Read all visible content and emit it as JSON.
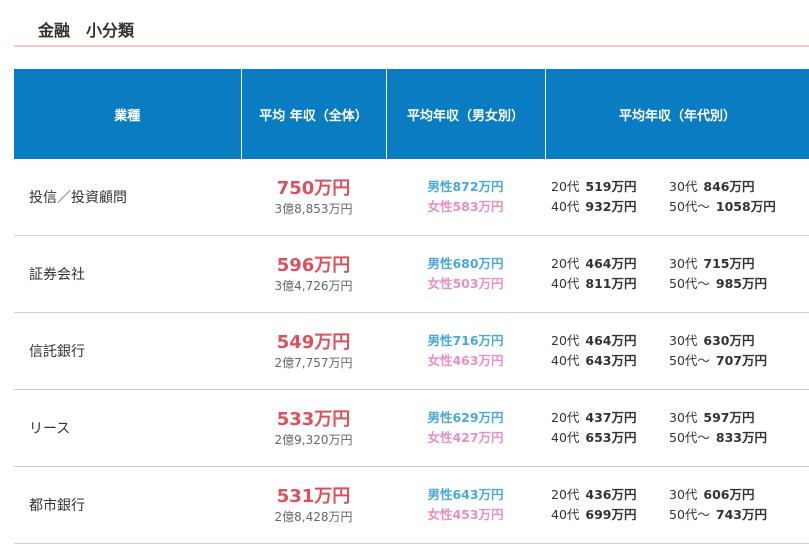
{
  "title": "金融　小分類",
  "headers": [
    "業種",
    "平均 年収（全体）",
    "平均年収（男女別）",
    "平均年収（年代別）"
  ],
  "age_labels": [
    "20代",
    "30代",
    "40代",
    "50代～"
  ],
  "rows": [
    {
      "industry": "投信／投資顧問",
      "avg": "750万円",
      "lifetime": "3億8,853万円",
      "male": "男性872万円",
      "female": "女性583万円",
      "ages": [
        "519万円",
        "846万円",
        "932万円",
        "1058万円"
      ]
    },
    {
      "industry": "証券会社",
      "avg": "596万円",
      "lifetime": "3億4,726万円",
      "male": "男性680万円",
      "female": "女性503万円",
      "ages": [
        "464万円",
        "715万円",
        "811万円",
        "985万円"
      ]
    },
    {
      "industry": "信託銀行",
      "avg": "549万円",
      "lifetime": "2億7,757万円",
      "male": "男性716万円",
      "female": "女性463万円",
      "ages": [
        "464万円",
        "630万円",
        "643万円",
        "707万円"
      ]
    },
    {
      "industry": "リース",
      "avg": "533万円",
      "lifetime": "2億9,320万円",
      "male": "男性629万円",
      "female": "女性427万円",
      "ages": [
        "437万円",
        "597万円",
        "653万円",
        "833万円"
      ]
    },
    {
      "industry": "都市銀行",
      "avg": "531万円",
      "lifetime": "2億8,428万円",
      "male": "男性643万円",
      "female": "女性453万円",
      "ages": [
        "436万円",
        "606万円",
        "699万円",
        "743万円"
      ]
    }
  ]
}
